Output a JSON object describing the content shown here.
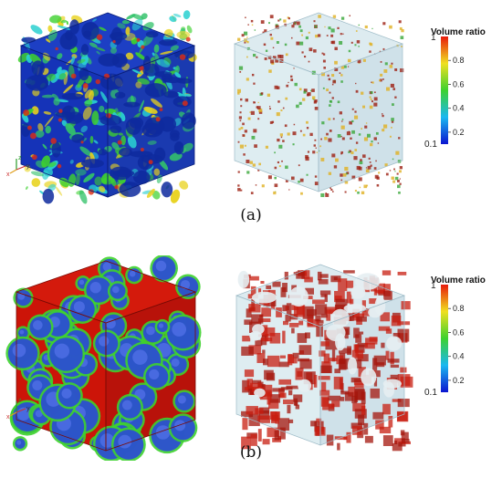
{
  "panels": [
    {
      "caption": "(a)",
      "colorbar": {
        "title": "Volume ratio",
        "max_label": "1",
        "min_label": "0.1",
        "ticks": [
          "0.8",
          "0.6",
          "0.4",
          "0.2"
        ],
        "min": 0.1,
        "max": 1.0
      },
      "axes_triad": {
        "x": "x",
        "y": "y",
        "z": "z"
      }
    },
    {
      "caption": "(b)",
      "colorbar": {
        "title": "Volume ratio",
        "max_label": "1",
        "min_label": "0.1",
        "ticks": [
          "0.8",
          "0.6",
          "0.4",
          "0.2"
        ],
        "min": 0.1,
        "max": 1.0
      },
      "axes_triad": {
        "x": "x",
        "y": "y",
        "z": "z"
      }
    }
  ],
  "colors": {
    "cube_a_base": "#1533b8",
    "cube_b_base": "#cc1408",
    "highlight_green": "#3ed12f",
    "highlight_yellow": "#e8d21b",
    "pore_blue": "#2a48d8",
    "transparent_cube": "#cfe3ea",
    "particle_red": "#9c1e10"
  }
}
